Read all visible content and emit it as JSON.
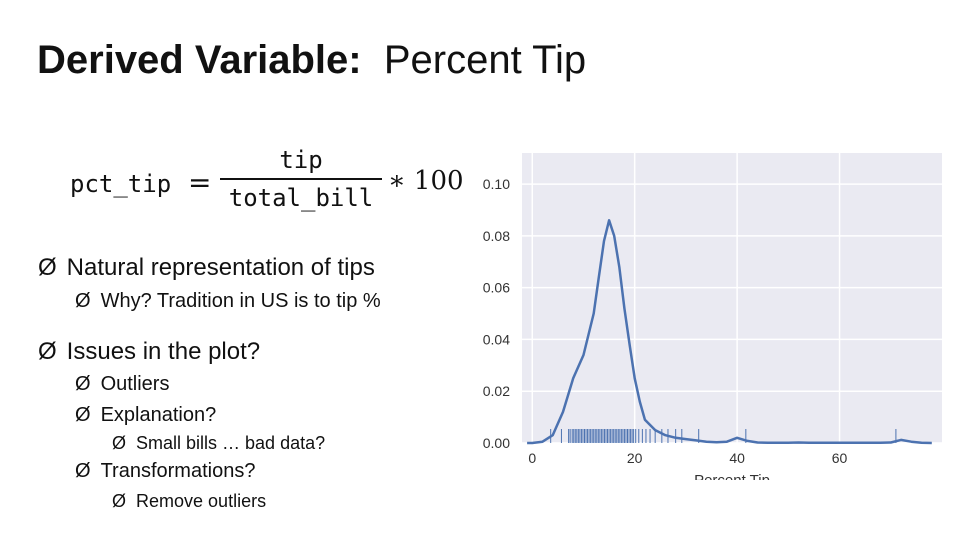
{
  "slide": {
    "title_bold": "Derived Variable:",
    "title_rest": "Percent Tip",
    "formula": {
      "lhs": "pct_tip",
      "equals": "=",
      "numerator": "tip",
      "denominator": "total_bill",
      "multiplier": "∗ 100"
    },
    "bullets": [
      {
        "level": 1,
        "text": "Natural representation of tips"
      },
      {
        "level": 2,
        "text": "Why? Tradition in US is to tip %"
      },
      {
        "level": 1,
        "text": "Issues in the plot?"
      },
      {
        "level": 2,
        "text": "Outliers"
      },
      {
        "level": 2,
        "text": "Explanation?"
      },
      {
        "level": 3,
        "text": "Small bills … bad data?"
      },
      {
        "level": 2,
        "text": "Transformations?"
      },
      {
        "level": 3,
        "text": "Remove outliers"
      }
    ],
    "bullet_glyph": "Ø"
  },
  "chart_data": {
    "type": "line",
    "subtype": "kde-with-rug",
    "title": "",
    "xlabel": "Percent Tip",
    "ylabel": "",
    "xlim": [
      -2,
      80
    ],
    "ylim": [
      0,
      0.112
    ],
    "xticks": [
      0,
      20,
      40,
      60
    ],
    "yticks": [
      0.0,
      0.02,
      0.04,
      0.06,
      0.08,
      0.1
    ],
    "ytick_labels": [
      "0.00",
      "0.02",
      "0.04",
      "0.06",
      "0.08",
      "0.10"
    ],
    "grid": true,
    "background": "#eaeaf2",
    "line_color": "#4c72b0",
    "series": [
      {
        "x": [
          -1,
          0,
          2,
          4,
          6,
          8,
          10,
          12,
          13,
          14,
          15,
          16,
          17,
          18,
          19,
          20,
          21,
          22,
          24,
          26,
          28,
          30,
          32,
          34,
          36,
          38,
          40,
          42,
          44,
          46,
          48,
          50,
          52,
          54,
          56,
          58,
          60,
          62,
          64,
          66,
          68,
          70,
          72,
          74,
          76,
          78
        ],
        "y": [
          0.0,
          0.0,
          0.0005,
          0.003,
          0.012,
          0.025,
          0.034,
          0.05,
          0.064,
          0.078,
          0.086,
          0.08,
          0.068,
          0.052,
          0.038,
          0.025,
          0.016,
          0.009,
          0.005,
          0.003,
          0.002,
          0.0015,
          0.001,
          0.0005,
          0.0003,
          0.0005,
          0.002,
          0.0008,
          0.0002,
          0.0001,
          0.0001,
          0.0001,
          0.0002,
          0.0001,
          0.0001,
          0.0001,
          0.0001,
          0.0001,
          0.0001,
          0.0001,
          0.0001,
          0.0002,
          0.0012,
          0.0005,
          0.0001,
          0.0
        ]
      }
    ],
    "rug": [
      3.6,
      5.7,
      7.1,
      7.4,
      7.8,
      8.1,
      8.4,
      8.7,
      9.0,
      9.3,
      9.6,
      9.9,
      10.2,
      10.5,
      10.8,
      11.1,
      11.4,
      11.7,
      12.0,
      12.3,
      12.6,
      12.9,
      13.2,
      13.5,
      13.8,
      14.1,
      14.4,
      14.7,
      15.0,
      15.3,
      15.6,
      15.9,
      16.2,
      16.5,
      16.8,
      17.1,
      17.4,
      17.7,
      18.0,
      18.3,
      18.6,
      18.9,
      19.2,
      19.5,
      19.8,
      20.2,
      20.8,
      21.5,
      22.2,
      23.0,
      24.0,
      25.3,
      26.5,
      28.0,
      29.2,
      32.5,
      41.7,
      71.0
    ]
  }
}
